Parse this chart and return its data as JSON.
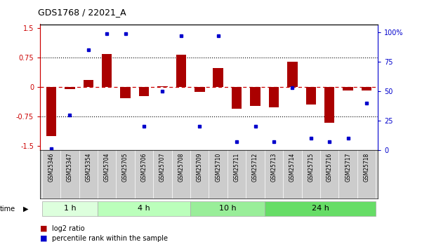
{
  "title": "GDS1768 / 22021_A",
  "samples": [
    "GSM25346",
    "GSM25347",
    "GSM25354",
    "GSM25704",
    "GSM25705",
    "GSM25706",
    "GSM25707",
    "GSM25708",
    "GSM25709",
    "GSM25710",
    "GSM25711",
    "GSM25712",
    "GSM25713",
    "GSM25714",
    "GSM25715",
    "GSM25716",
    "GSM25717",
    "GSM25718"
  ],
  "log2_ratio": [
    -1.25,
    -0.05,
    0.18,
    0.85,
    -0.28,
    -0.22,
    0.03,
    0.82,
    -0.12,
    0.48,
    -0.55,
    -0.48,
    -0.52,
    0.65,
    -0.45,
    -0.9,
    -0.08,
    -0.08
  ],
  "percentile": [
    1,
    30,
    85,
    99,
    99,
    20,
    50,
    97,
    20,
    97,
    7,
    20,
    7,
    53,
    10,
    7,
    10,
    40
  ],
  "groups": [
    {
      "label": "1 h",
      "start": 0,
      "end": 3,
      "color": "#ddffdd"
    },
    {
      "label": "4 h",
      "start": 3,
      "end": 8,
      "color": "#bbffbb"
    },
    {
      "label": "10 h",
      "start": 8,
      "end": 12,
      "color": "#99ee99"
    },
    {
      "label": "24 h",
      "start": 12,
      "end": 18,
      "color": "#66dd66"
    }
  ],
  "bar_color": "#aa0000",
  "dot_color": "#0000cc",
  "ylim_left": [
    -1.6,
    1.6
  ],
  "ylim_right": [
    0,
    107
  ],
  "yticks_left": [
    -1.5,
    -0.75,
    0,
    0.75,
    1.5
  ],
  "yticks_right": [
    0,
    25,
    50,
    75,
    100
  ],
  "ytick_right_labels": [
    "0",
    "25",
    "50",
    "75",
    "100%"
  ],
  "hline_color": "#cc0000",
  "dotted_color": "black",
  "bar_width": 0.55,
  "background_color": "#ffffff",
  "plot_bg_color": "#ffffff",
  "sample_bg_color": "#cccccc",
  "time_label": "time",
  "legend_items": [
    {
      "color": "#aa0000",
      "label": "log2 ratio"
    },
    {
      "color": "#0000cc",
      "label": "percentile rank within the sample"
    }
  ]
}
